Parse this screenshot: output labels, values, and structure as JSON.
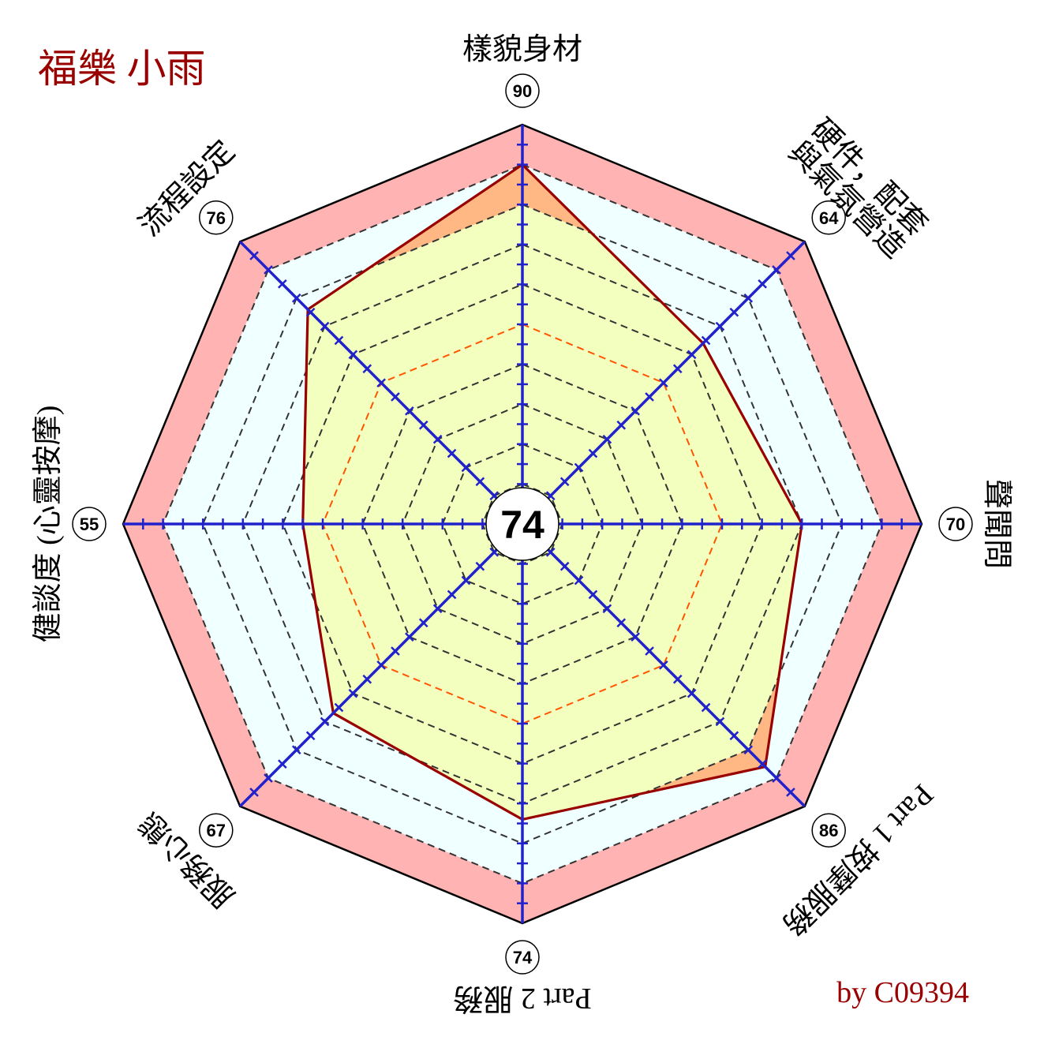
{
  "title": "福樂 小雨",
  "credit": "by C09394",
  "chart_data": {
    "type": "radar",
    "center_value": "74",
    "axes": [
      {
        "label": "樣貌身材",
        "value": 90
      },
      {
        "label": "硬件，配套\n與氣氛營造",
        "value": 64
      },
      {
        "label": "聲聞問",
        "value": 70
      },
      {
        "label": "Part 1 按摩服務",
        "value": 86
      },
      {
        "label": "Part 2 服務",
        "value": 74
      },
      {
        "label": "服務心態",
        "value": 67
      },
      {
        "label": "健談度 (心靈按摩)",
        "value": 55
      },
      {
        "label": "流程設定",
        "value": 76
      }
    ],
    "range": [
      0,
      100
    ],
    "grid_levels": [
      10,
      20,
      30,
      40,
      50,
      60,
      70,
      80,
      90,
      100
    ],
    "highlight_level": 50,
    "colors": {
      "outer_band": "#ffb3b3",
      "inner_fill": "#f0ffff",
      "score_fill": "#f3ffbf",
      "excess_fill": "#ffb783",
      "score_line": "#990000",
      "axis": "#2222cc",
      "title": "#990000"
    }
  }
}
